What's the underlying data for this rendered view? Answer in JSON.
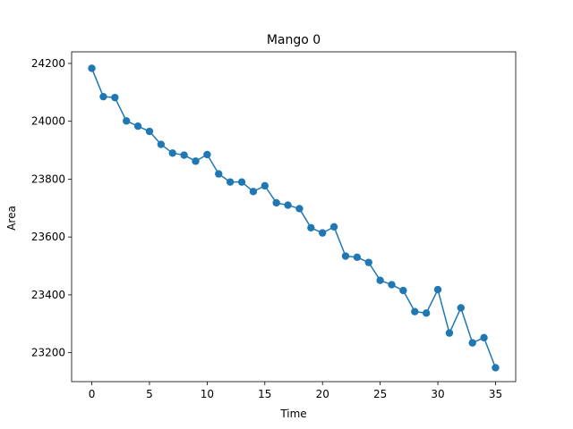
{
  "chart_data": {
    "type": "line",
    "title": "Mango 0",
    "xlabel": "Time",
    "ylabel": "Area",
    "xlim": [
      -1.75,
      36.75
    ],
    "ylim": [
      23100,
      24240
    ],
    "xticks": [
      0,
      5,
      10,
      15,
      20,
      25,
      30,
      35
    ],
    "yticks": [
      23200,
      23400,
      23600,
      23800,
      24000,
      24200
    ],
    "grid": false,
    "series": [
      {
        "color": "#1f77b4",
        "marker": "circle",
        "x": [
          0,
          1,
          2,
          3,
          4,
          5,
          6,
          7,
          8,
          9,
          10,
          11,
          12,
          13,
          14,
          15,
          16,
          17,
          18,
          19,
          20,
          21,
          22,
          23,
          24,
          25,
          26,
          27,
          28,
          29,
          30,
          31,
          32,
          33,
          34,
          35
        ],
        "y": [
          24183,
          24085,
          24082,
          24001,
          23983,
          23965,
          23920,
          23890,
          23883,
          23862,
          23885,
          23818,
          23790,
          23790,
          23757,
          23777,
          23718,
          23710,
          23698,
          23632,
          23614,
          23635,
          23534,
          23530,
          23512,
          23450,
          23435,
          23415,
          23342,
          23337,
          23418,
          23268,
          23355,
          23234,
          23252,
          23148
        ]
      }
    ]
  }
}
